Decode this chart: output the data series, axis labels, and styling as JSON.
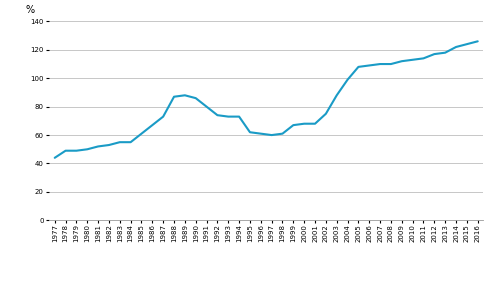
{
  "years": [
    1977,
    1978,
    1979,
    1980,
    1981,
    1982,
    1983,
    1984,
    1985,
    1986,
    1987,
    1988,
    1989,
    1990,
    1991,
    1992,
    1993,
    1994,
    1995,
    1996,
    1997,
    1998,
    1999,
    2000,
    2001,
    2002,
    2003,
    2004,
    2005,
    2006,
    2007,
    2008,
    2009,
    2010,
    2011,
    2012,
    2013,
    2014,
    2015,
    2016
  ],
  "values": [
    44,
    49,
    49,
    50,
    52,
    53,
    55,
    55,
    61,
    67,
    73,
    87,
    88,
    86,
    80,
    74,
    73,
    73,
    62,
    61,
    60,
    61,
    67,
    68,
    68,
    75,
    88,
    99,
    108,
    109,
    110,
    110,
    112,
    113,
    114,
    117,
    118,
    122,
    124,
    126
  ],
  "line_color": "#1a9bc6",
  "line_width": 1.5,
  "ylim": [
    0,
    140
  ],
  "yticks": [
    0,
    20,
    40,
    60,
    80,
    100,
    120,
    140
  ],
  "ylabel": "%",
  "background_color": "#ffffff",
  "grid_color": "#b0b0b0",
  "grid_linewidth": 0.5,
  "tick_fontsize": 5.0,
  "ylabel_fontsize": 7
}
